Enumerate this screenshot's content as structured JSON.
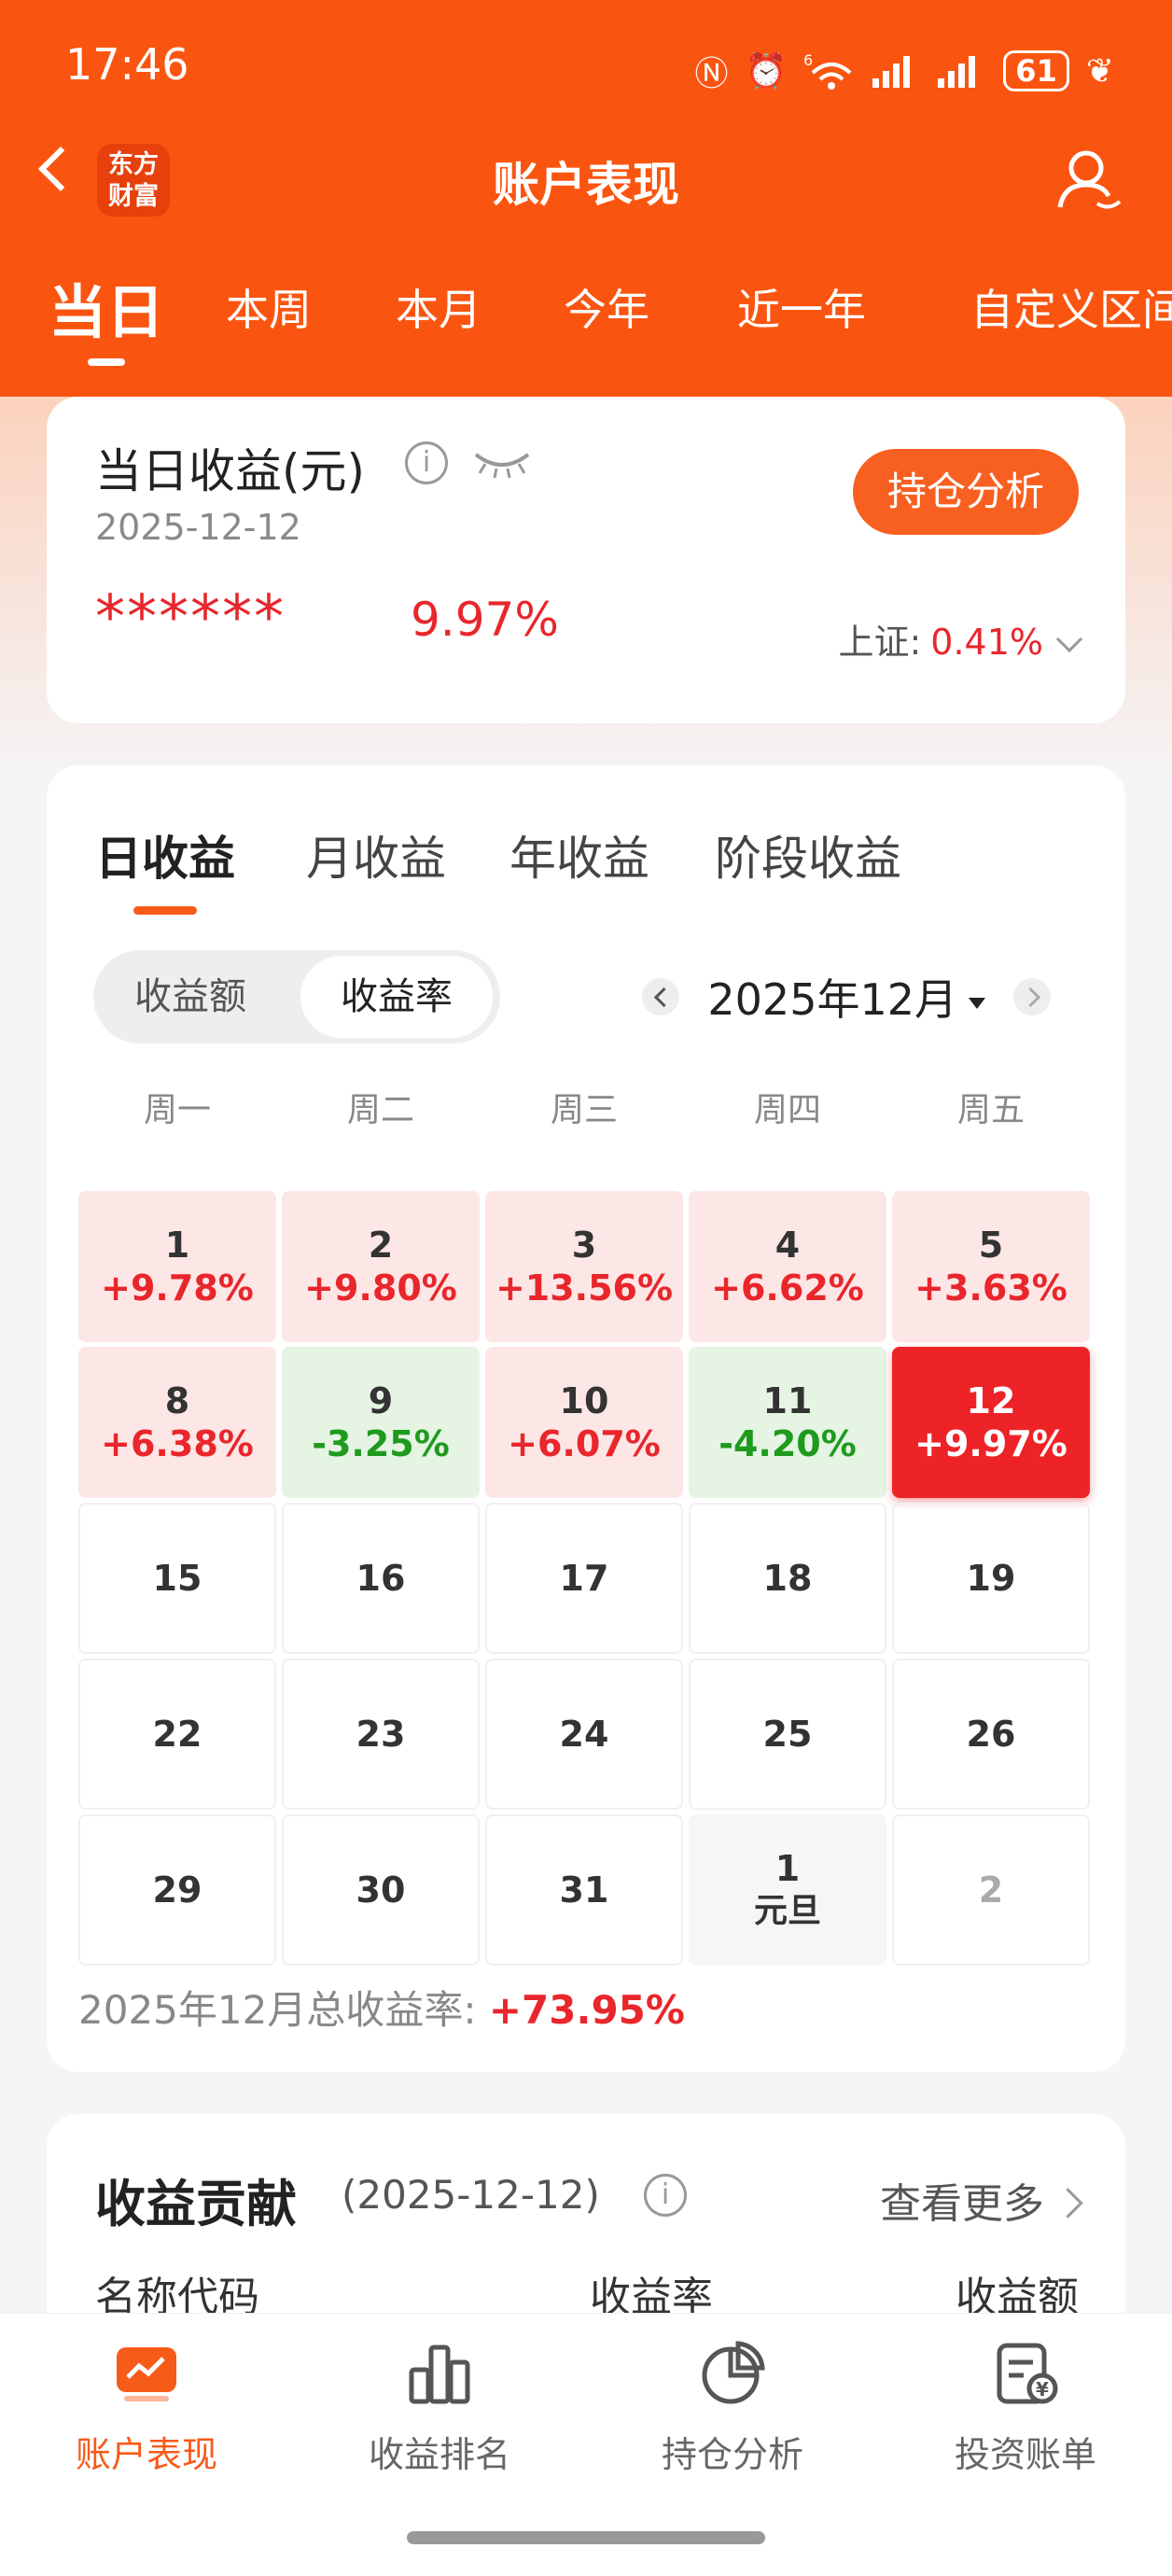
{
  "status": {
    "time": "17:46",
    "battery": "61",
    "signal": "6"
  },
  "header": {
    "logo": "东方财富",
    "logo_line1": "东方",
    "logo_line2": "财富",
    "title": "账户表现"
  },
  "period_tabs": [
    "当日",
    "本周",
    "本月",
    "今年",
    "近一年",
    "自定义区间"
  ],
  "summary": {
    "label": "当日收益(元)",
    "info": "i",
    "date": "2025-12-12",
    "masked_amount": "******",
    "rate": "9.97%",
    "button": "持仓分析",
    "index_label": "上证:",
    "index_value": "0.41%"
  },
  "returns": {
    "tabs": [
      "日收益",
      "月收益",
      "年收益",
      "阶段收益"
    ],
    "toggle": [
      "收益额",
      "收益率"
    ],
    "month": "2025年12月",
    "weekdays": [
      "周一",
      "周二",
      "周三",
      "周四",
      "周五"
    ],
    "rows": [
      [
        {
          "d": "1",
          "p": "+9.78%",
          "t": "up"
        },
        {
          "d": "2",
          "p": "+9.80%",
          "t": "up"
        },
        {
          "d": "3",
          "p": "+13.56%",
          "t": "up"
        },
        {
          "d": "4",
          "p": "+6.62%",
          "t": "up"
        },
        {
          "d": "5",
          "p": "+3.63%",
          "t": "up"
        }
      ],
      [
        {
          "d": "8",
          "p": "+6.38%",
          "t": "up"
        },
        {
          "d": "9",
          "p": "-3.25%",
          "t": "dn"
        },
        {
          "d": "10",
          "p": "+6.07%",
          "t": "up"
        },
        {
          "d": "11",
          "p": "-4.20%",
          "t": "dn"
        },
        {
          "d": "12",
          "p": "+9.97%",
          "t": "today"
        }
      ],
      [
        {
          "d": "15"
        },
        {
          "d": "16"
        },
        {
          "d": "17"
        },
        {
          "d": "18"
        },
        {
          "d": "19"
        }
      ],
      [
        {
          "d": "22"
        },
        {
          "d": "23"
        },
        {
          "d": "24"
        },
        {
          "d": "25"
        },
        {
          "d": "26"
        }
      ],
      [
        {
          "d": "29"
        },
        {
          "d": "30"
        },
        {
          "d": "31"
        },
        {
          "d": "1",
          "h": "元旦",
          "t": "next"
        },
        {
          "d": "2",
          "t": "muted"
        }
      ]
    ],
    "total_label": "2025年12月总收益率:",
    "total_value": "+73.95%"
  },
  "contribution": {
    "title": "收益贡献",
    "date": "(2025-12-12)",
    "info": "i",
    "more": "查看更多",
    "columns": [
      "名称代码",
      "收益率",
      "收益额"
    ]
  },
  "bottom_nav": [
    "账户表现",
    "收益排名",
    "持仓分析",
    "投资账单"
  ],
  "colors": {
    "brand": "#fa5510",
    "up": "#e8262b",
    "down": "#1e9a1e"
  }
}
